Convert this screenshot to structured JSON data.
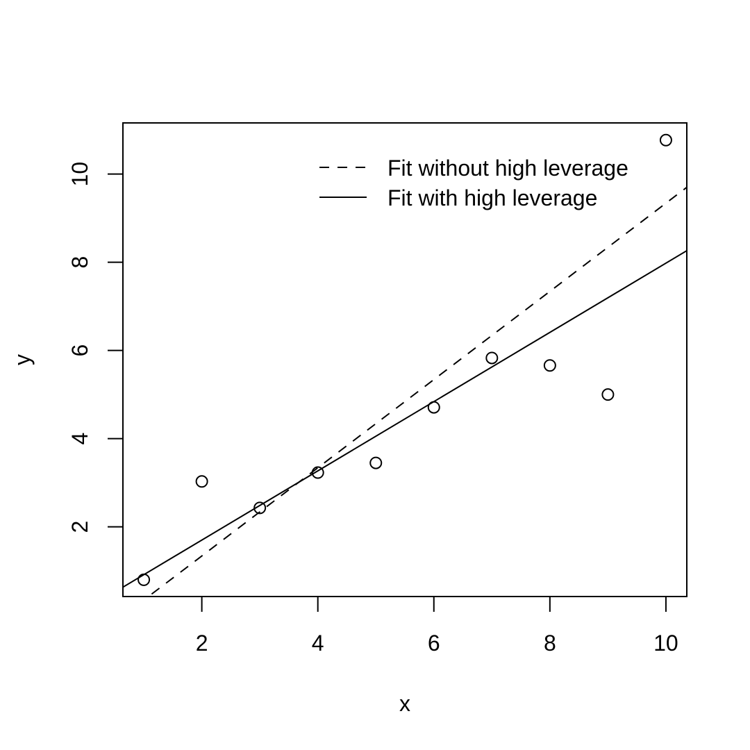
{
  "chart_data": {
    "type": "scatter",
    "title": "",
    "xlabel": "x",
    "ylabel": "y",
    "xlim": [
      0.64,
      10.36
    ],
    "ylim": [
      0.42,
      11.16
    ],
    "grid": false,
    "legend_position": "top-right",
    "x_ticks": [
      2,
      4,
      6,
      8,
      10
    ],
    "x_tick_labels": [
      "2",
      "4",
      "6",
      "8",
      "10"
    ],
    "y_ticks": [
      2,
      4,
      6,
      8,
      10
    ],
    "y_tick_labels": [
      "2",
      "4",
      "6",
      "8",
      "10"
    ],
    "points": {
      "x": [
        1,
        2,
        3,
        4,
        5,
        6,
        7,
        8,
        9,
        10
      ],
      "y": [
        0.8,
        3.03,
        2.43,
        3.23,
        3.45,
        4.71,
        5.83,
        5.66,
        5.0,
        10.77
      ]
    },
    "lines": [
      {
        "name": "Fit without high leverage",
        "style": "dashed",
        "intercept": -0.66,
        "slope": 1.0
      },
      {
        "name": "Fit with high leverage",
        "style": "solid",
        "intercept": 0.13,
        "slope": 0.785
      }
    ],
    "legend": [
      {
        "label": "Fit without high leverage",
        "style": "dashed"
      },
      {
        "label": "Fit with high leverage",
        "style": "solid"
      }
    ],
    "colors": {
      "foreground": "#000000",
      "background": "#ffffff"
    }
  }
}
